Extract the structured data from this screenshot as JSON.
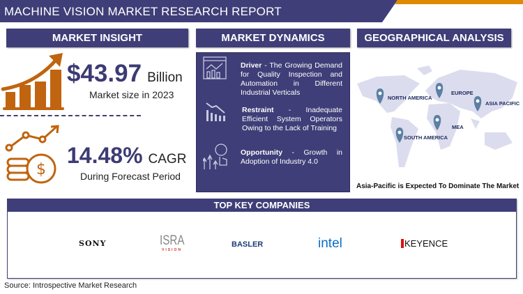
{
  "title": "MACHINE VISION MARKET RESEARCH REPORT",
  "colors": {
    "navy": "#3f3e78",
    "orange": "#c0640f",
    "map": "#dcdcef",
    "pin": "#5a80a3"
  },
  "market_insight": {
    "header": "MARKET INSIGHT",
    "market_size_value": "$43.97",
    "market_size_unit": "Billion",
    "market_size_caption": "Market size in 2023",
    "cagr_value": "14.48%",
    "cagr_unit": "CAGR",
    "cagr_caption": "During Forecast Period",
    "icons": [
      "growth-bar-chart-icon",
      "coins-growth-icon"
    ]
  },
  "market_dynamics": {
    "header": "MARKET DYNAMICS",
    "items": [
      {
        "label": "Driver",
        "text": " - The Growing Demand for Quality Inspection and Automation in Different Industrial Verticals",
        "icon": "analytics-dashboard-icon"
      },
      {
        "label": "Restraint",
        "text": " - Inadequate Efficient System Operators Owing to the Lack of Training",
        "icon": "declining-chart-icon"
      },
      {
        "label": "Opportunity",
        "text": " - Growth in Adoption of Industry 4.0",
        "icon": "innovation-growth-icon"
      }
    ]
  },
  "geographical_analysis": {
    "header": "GEOGRAPHICAL ANALYSIS",
    "regions": [
      "NORTH AMERICA",
      "EUROPE",
      "ASIA PACIFIC",
      "MEA",
      "SOUTH AMERICA"
    ],
    "caption": "Asia-Pacific is Expected To Dominate The Market"
  },
  "companies": {
    "header": "TOP KEY COMPANIES",
    "logos": [
      "SONY",
      "ISRA",
      "VISION",
      "BASLER",
      "intel",
      "KEYENCE"
    ]
  },
  "source": "Source: Introspective Market Research"
}
